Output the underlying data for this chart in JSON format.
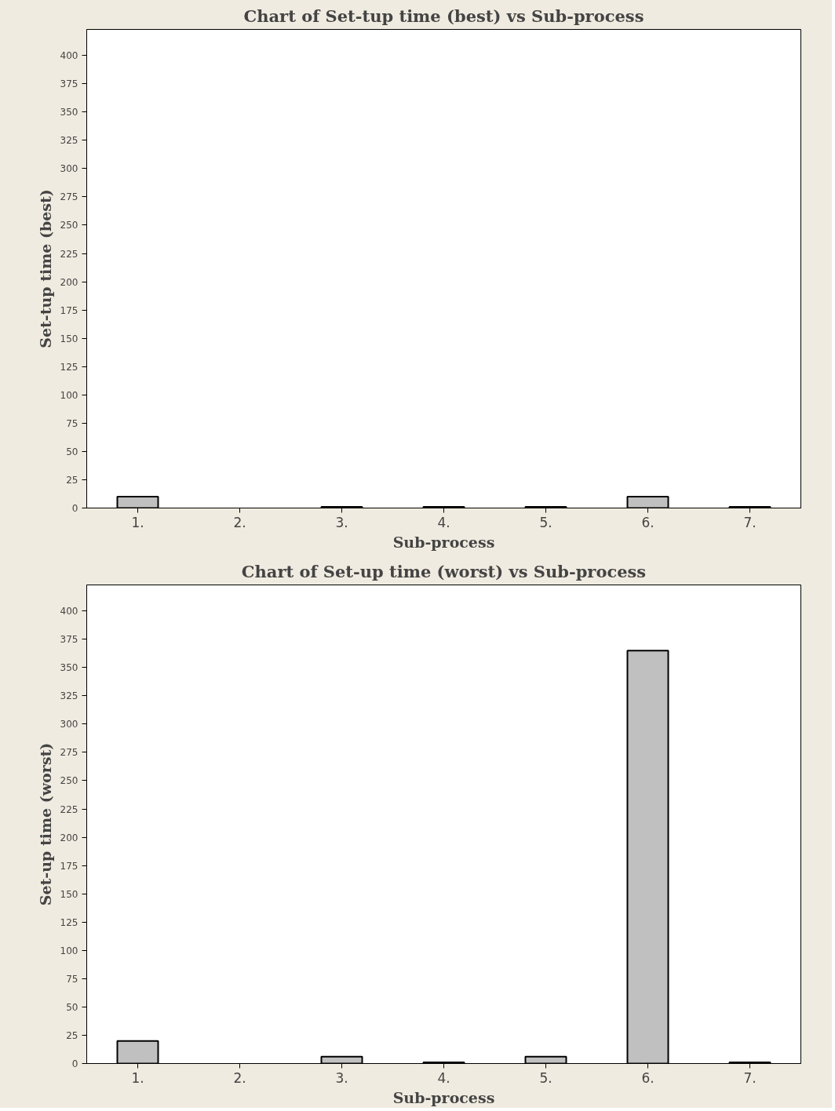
{
  "chart_data": [
    {
      "type": "bar",
      "title": "Chart of Set-tup time (best) vs Sub-process",
      "xlabel": "Sub-process",
      "ylabel": "Set-tup time (best)",
      "categories": [
        "1.",
        "2.",
        "3.",
        "4.",
        "5.",
        "6.",
        "7."
      ],
      "values": [
        10,
        0,
        1,
        1,
        1,
        10,
        1
      ],
      "color": "#c0c0c0",
      "ylim": [
        0,
        423
      ],
      "yticks": [
        0,
        25,
        50,
        75,
        100,
        125,
        150,
        175,
        200,
        225,
        250,
        275,
        300,
        325,
        350,
        375,
        400
      ],
      "grid": false
    },
    {
      "type": "bar",
      "title": "Chart of Set-up time (worst) vs Sub-process",
      "xlabel": "Sub-process",
      "ylabel": "Set-up time (worst)",
      "categories": [
        "1.",
        "2.",
        "3.",
        "4.",
        "5.",
        "6.",
        "7."
      ],
      "values": [
        20,
        0,
        6,
        1,
        6,
        365,
        1
      ],
      "color": "#c0c0c0",
      "ylim": [
        0,
        423
      ],
      "yticks": [
        0,
        25,
        50,
        75,
        100,
        125,
        150,
        175,
        200,
        225,
        250,
        275,
        300,
        325,
        350,
        375,
        400
      ],
      "grid": false
    }
  ]
}
